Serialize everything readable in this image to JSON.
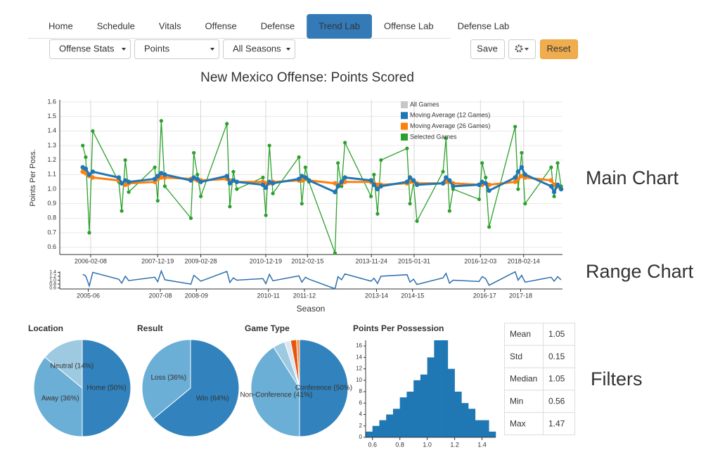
{
  "nav": {
    "tabs": [
      "Home",
      "Schedule",
      "Vitals",
      "Offense",
      "Defense",
      "Trend Lab",
      "Offense Lab",
      "Defense Lab"
    ],
    "active": "Trend Lab"
  },
  "controls": {
    "selects": [
      "Offense Stats",
      "Points",
      "All Seasons"
    ],
    "buttons": [
      "Save",
      "Reset"
    ]
  },
  "annotations": [
    "Main Chart",
    "Range Chart",
    "Filters"
  ],
  "chart_data": [
    {
      "type": "line",
      "title": "New Mexico Offense: Points Scored",
      "ylabel": "Points Per Poss.",
      "x": [
        "2005-11-20",
        "2005-12-20",
        "2006-01-25",
        "2006-03-01",
        "2006-11-20",
        "2006-12-20",
        "2007-01-25",
        "2007-03-01",
        "2007-11-20",
        "2007-12-20",
        "2008-01-25",
        "2008-03-01",
        "2008-11-20",
        "2008-12-20",
        "2009-01-25",
        "2009-03-01",
        "2009-11-20",
        "2009-12-20",
        "2010-01-25",
        "2010-03-01",
        "2010-11-20",
        "2010-12-20",
        "2011-01-25",
        "2011-03-01",
        "2011-11-20",
        "2011-12-20",
        "2012-01-25",
        "2012-03-01",
        "2012-11-20",
        "2012-12-20",
        "2013-01-25",
        "2013-03-01",
        "2013-11-20",
        "2013-12-20",
        "2014-01-25",
        "2014-03-01",
        "2014-11-20",
        "2014-12-20",
        "2015-01-25",
        "2015-03-01",
        "2015-11-20",
        "2015-12-20",
        "2016-01-25",
        "2016-03-01",
        "2016-11-20",
        "2016-12-20",
        "2017-01-25",
        "2017-03-01",
        "2017-11-20",
        "2017-12-20",
        "2018-01-25",
        "2018-03-01",
        "2018-11-20",
        "2018-12-20",
        "2019-01-25",
        "2019-03-01"
      ],
      "series": [
        {
          "name": "All Games",
          "color": "#c7c7c7"
        },
        {
          "name": "Moving Average (12 Games)",
          "color": "#1f77b4",
          "values": [
            1.15,
            1.14,
            1.1,
            1.12,
            1.08,
            1.04,
            1.06,
            1.05,
            1.07,
            1.09,
            1.11,
            1.1,
            1.06,
            1.08,
            1.07,
            1.05,
            1.09,
            1.04,
            1.06,
            1.05,
            1.03,
            1.01,
            1.05,
            1.04,
            1.07,
            1.09,
            1.08,
            1.06,
            0.98,
            1.02,
            1.05,
            1.08,
            1.06,
            1.03,
            1.0,
            1.02,
            1.05,
            1.08,
            1.06,
            1.03,
            1.04,
            1.08,
            1.06,
            1.02,
            1.03,
            1.05,
            1.04,
            0.99,
            1.08,
            1.12,
            1.15,
            1.1,
            1.02,
            0.98,
            1.03,
            1.0
          ]
        },
        {
          "name": "Moving Average (26 Games)",
          "color": "#ff7f0e",
          "values": [
            1.12,
            1.11,
            1.09,
            1.08,
            1.06,
            1.04,
            1.03,
            1.04,
            1.05,
            1.07,
            1.08,
            1.08,
            1.07,
            1.07,
            1.06,
            1.06,
            1.07,
            1.06,
            1.06,
            1.05,
            1.05,
            1.04,
            1.04,
            1.05,
            1.06,
            1.06,
            1.07,
            1.06,
            1.04,
            1.03,
            1.04,
            1.05,
            1.05,
            1.04,
            1.03,
            1.03,
            1.04,
            1.05,
            1.05,
            1.04,
            1.04,
            1.05,
            1.05,
            1.04,
            1.03,
            1.03,
            1.04,
            1.03,
            1.05,
            1.07,
            1.09,
            1.08,
            1.06,
            1.03,
            1.02,
            1.0
          ]
        },
        {
          "name": "Selected Games",
          "color": "#2ca02c",
          "values": [
            1.3,
            1.22,
            0.7,
            1.4,
            1.05,
            0.85,
            1.2,
            0.98,
            1.15,
            0.92,
            1.47,
            1.02,
            0.8,
            1.25,
            1.1,
            0.95,
            1.45,
            0.88,
            1.12,
            1.0,
            1.08,
            0.82,
            1.3,
            0.97,
            1.22,
            0.9,
            1.15,
            1.05,
            0.56,
            1.18,
            1.02,
            1.32,
            0.95,
            1.1,
            0.83,
            1.2,
            1.28,
            0.9,
            1.05,
            0.78,
            1.12,
            1.35,
            0.85,
            1.0,
            0.93,
            1.18,
            1.08,
            0.74,
            1.43,
            1.0,
            1.25,
            0.9,
            1.15,
            0.95,
            1.18,
            1.02
          ]
        }
      ],
      "xlim": [
        "2005-04-01",
        "2019-03-15"
      ],
      "ylim": [
        0.55,
        1.6
      ],
      "yticks": [
        0.6,
        0.7,
        0.8,
        0.9,
        {
          "value": 1,
          "label": "1.0"
        },
        1.1,
        1.2,
        1.3,
        1.4,
        1.5,
        1.6
      ],
      "xticks": [
        "2006-02-08",
        "2007-12-19",
        "2009-02-28",
        "2010-12-19",
        "2012-02-15",
        "2013-11-24",
        "2015-01-31",
        "2016-12-03",
        "2018-02-14"
      ],
      "grid": true,
      "legend": "upper right"
    },
    {
      "type": "line",
      "xlabel": "Season",
      "color": "#2f6fad",
      "xlim": [
        "2005-04-01",
        "2019-03-15"
      ],
      "ylim": [
        0.55,
        1.45
      ],
      "yticks": [
        0.6,
        0.8,
        {
          "value": 1,
          "label": "1.0"
        },
        1.2,
        1.4
      ],
      "xticks": [
        {
          "value": "2006-01-15",
          "label": "2005-06"
        },
        {
          "value": "2008-01-15",
          "label": "2007-08"
        },
        {
          "value": "2009-01-15",
          "label": "2008-09"
        },
        {
          "value": "2011-01-15",
          "label": "2010-11"
        },
        {
          "value": "2012-01-15",
          "label": "2011-12"
        },
        {
          "value": "2014-01-15",
          "label": "2013-14"
        },
        {
          "value": "2015-01-15",
          "label": "2014-15"
        },
        {
          "value": "2017-01-15",
          "label": "2016-17"
        },
        {
          "value": "2018-01-15",
          "label": "2017-18"
        }
      ]
    },
    {
      "type": "pie",
      "title": "Location",
      "categories": [
        "Home",
        "Away",
        "Neutral"
      ],
      "values": [
        50,
        36,
        14
      ],
      "value_labels": [
        "Home (50%)",
        "Away (36%)",
        "Neutral (14%)"
      ],
      "colors": [
        "#3182bd",
        "#6baed6",
        "#9ecae1"
      ]
    },
    {
      "type": "pie",
      "title": "Result",
      "categories": [
        "Win",
        "Loss"
      ],
      "values": [
        64,
        36
      ],
      "value_labels": [
        "Win (64%)",
        "Loss (36%)"
      ],
      "colors": [
        "#3182bd",
        "#6baed6"
      ]
    },
    {
      "type": "pie",
      "title": "Game Type",
      "categories": [
        "Conference",
        "Non-Conference",
        null,
        null,
        null,
        null
      ],
      "values": [
        50,
        41,
        4,
        2,
        2,
        1
      ],
      "value_labels": [
        "Conference (50%)",
        "Non-Conference (41%)",
        null,
        null,
        null,
        null
      ],
      "colors": [
        "#3182bd",
        "#6baed6",
        "#9ecae1",
        "#dbe7f2",
        "#e6550d",
        "#fd8d3c"
      ]
    },
    {
      "type": "histogram",
      "title": "Points Per Possession",
      "color": "#1f77b4",
      "bins": [
        0.55,
        0.6,
        0.65,
        0.7,
        0.75,
        0.8,
        0.85,
        0.9,
        0.95,
        1.0,
        1.05,
        1.1,
        1.15,
        1.2,
        1.25,
        1.3,
        1.35,
        1.4,
        1.45,
        1.5
      ],
      "counts": [
        1,
        2,
        3,
        4,
        5,
        7,
        8,
        10,
        11,
        14,
        17,
        17,
        12,
        8,
        6,
        5,
        3,
        3,
        1
      ],
      "xlim": [
        0.55,
        1.5
      ],
      "ylim": [
        0,
        17
      ],
      "xticks": [
        0.6,
        0.8,
        {
          "value": 1,
          "label": "1.0"
        },
        1.2,
        1.4
      ],
      "yticks": [
        0,
        2,
        4,
        6,
        8,
        10,
        12,
        14,
        16
      ]
    }
  ],
  "stats_table": {
    "rows": [
      [
        "Mean",
        1.05
      ],
      [
        "Std",
        0.15
      ],
      [
        "Median",
        1.05
      ],
      [
        "Min",
        0.56
      ],
      [
        "Max",
        1.47
      ]
    ]
  }
}
